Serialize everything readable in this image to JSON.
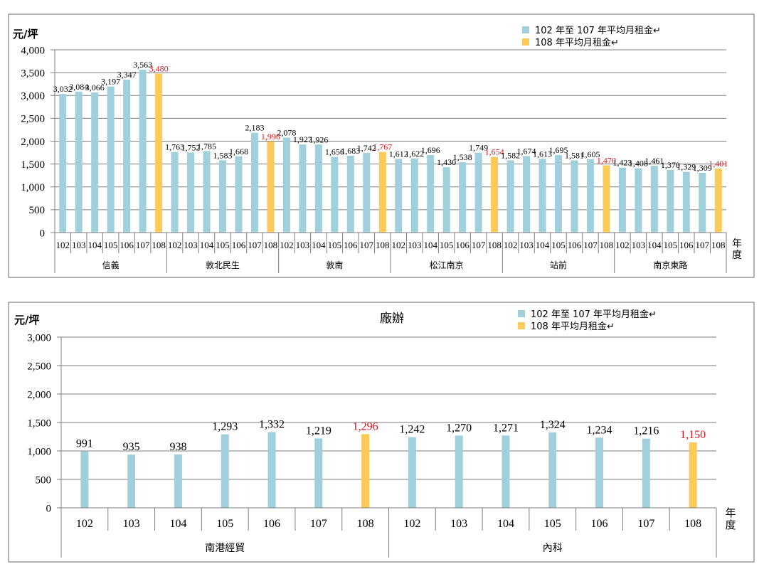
{
  "colors": {
    "hist": "#9fd0dc",
    "current": "#fcca58",
    "highlight_label": "#e0141e",
    "grid": "#7f7f7f",
    "frame": "#7f7f7f"
  },
  "chart_data": [
    {
      "type": "bar",
      "title": "",
      "ylabel": "元/坪",
      "xlabel": "年度",
      "ylim": [
        0,
        4000
      ],
      "yticks": [
        "0",
        "500",
        "1,000",
        "1,500",
        "2,000",
        "2,500",
        "3,000",
        "3,500",
        "4,000"
      ],
      "ytick_values": [
        0,
        500,
        1000,
        1500,
        2000,
        2500,
        3000,
        3500,
        4000
      ],
      "grid": true,
      "legend": {
        "placement": "top-right",
        "entries": [
          "102 年至 107 年平均月租金↵",
          "108 年平均月租金↵"
        ]
      },
      "years": [
        "102",
        "103",
        "104",
        "105",
        "106",
        "107",
        "108"
      ],
      "groups": [
        {
          "name": "信義",
          "values": [
            3032,
            3084,
            3066,
            3197,
            3347,
            3563,
            3480
          ],
          "labels": [
            "3,032",
            "3,084",
            "3,066",
            "3,197",
            "3,347",
            "3,563",
            "3,480"
          ]
        },
        {
          "name": "敦北民生",
          "values": [
            1763,
            1752,
            1785,
            1583,
            1668,
            2183,
            1996
          ],
          "labels": [
            "1,763",
            "1,752",
            "1,785",
            "1,583",
            "1,668",
            "2,183",
            "1,996"
          ]
        },
        {
          "name": "敦南",
          "values": [
            2078,
            1927,
            1926,
            1656,
            1683,
            1742,
            1767
          ],
          "labels": [
            "2,078",
            "1,927",
            "1,926",
            "1,656",
            "1,683",
            "1,742",
            "1,767"
          ]
        },
        {
          "name": "松江南京",
          "values": [
            1612,
            1622,
            1696,
            1430,
            1538,
            1749,
            1654
          ],
          "labels": [
            "1,612",
            "1,622",
            "1,696",
            "1,430",
            "1,538",
            "1,749",
            "1,654"
          ]
        },
        {
          "name": "站前",
          "values": [
            1582,
            1674,
            1613,
            1695,
            1581,
            1605,
            1470
          ],
          "labels": [
            "1,582",
            "1,674",
            "1,613",
            "1,695",
            "1,581",
            "1,605",
            "1,470"
          ]
        },
        {
          "name": "南京東路",
          "values": [
            1423,
            1408,
            1461,
            1370,
            1329,
            1309,
            1401
          ],
          "labels": [
            "1,423",
            "1,408",
            "1,461",
            "1,370",
            "1,329",
            "1,309",
            "1,401"
          ]
        }
      ]
    },
    {
      "type": "bar",
      "title": "廠辦",
      "ylabel": "元/坪",
      "xlabel": "年度",
      "ylim": [
        0,
        3000
      ],
      "yticks": [
        "0",
        "500",
        "1,000",
        "1,500",
        "2,000",
        "2,500",
        "3,000"
      ],
      "ytick_values": [
        0,
        500,
        1000,
        1500,
        2000,
        2500,
        3000
      ],
      "grid": true,
      "legend": {
        "placement": "top-right",
        "entries": [
          "102 年至 107 年平均月租金↵",
          "108 年平均月租金↵"
        ]
      },
      "years": [
        "102",
        "103",
        "104",
        "105",
        "106",
        "107",
        "108"
      ],
      "groups": [
        {
          "name": "南港經貿",
          "values": [
            991,
            935,
            938,
            1293,
            1332,
            1219,
            1296
          ],
          "labels": [
            "991",
            "935",
            "938",
            "1,293",
            "1,332",
            "1,219",
            "1,296"
          ]
        },
        {
          "name": "內科",
          "values": [
            1242,
            1270,
            1271,
            1324,
            1234,
            1216,
            1150
          ],
          "labels": [
            "1,242",
            "1,270",
            "1,271",
            "1,324",
            "1,234",
            "1,216",
            "1,150"
          ]
        }
      ]
    }
  ]
}
